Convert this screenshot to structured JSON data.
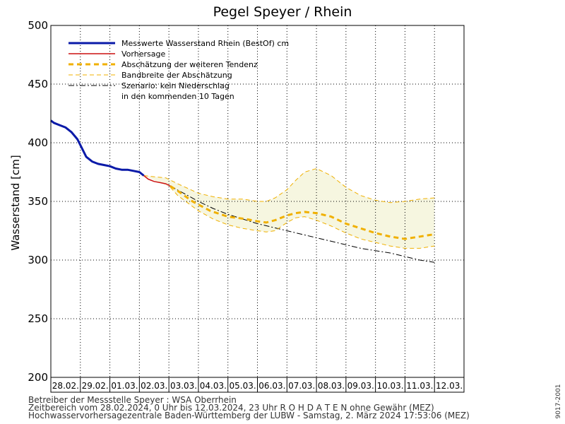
{
  "chart_data": {
    "type": "line",
    "title": "Pegel Speyer / Rhein",
    "ylabel": "Wasserstand [cm]",
    "ylim": [
      200,
      500
    ],
    "yticks": [
      200,
      250,
      300,
      350,
      400,
      450,
      500
    ],
    "grid": true,
    "legend_position": "top-left",
    "categories": [
      "28.02.",
      "29.02.",
      "01.03.",
      "02.03.",
      "03.03.",
      "04.03.",
      "05.03.",
      "06.03.",
      "07.03.",
      "08.03.",
      "09.03.",
      "10.03.",
      "11.03.",
      "12.03."
    ],
    "legend": {
      "entries": [
        "Messwerte Wasserstand Rhein (BestOf)  cm",
        "Vorhersage",
        "Abschätzung der weiteren Tendenz",
        "Bandbreite der Abschätzung",
        "Szenario: kein Niederschlag"
      ],
      "extra_line": "in den kommenden 10 Tagen"
    },
    "series": [
      {
        "name": "Messwerte Wasserstand Rhein (BestOf)  cm",
        "color": "#0a1aa8",
        "x": [
          0,
          0.1,
          0.3,
          0.5,
          0.7,
          0.9,
          1.0,
          1.2,
          1.4,
          1.6,
          1.8,
          2.0,
          2.2,
          2.4,
          2.6,
          2.8,
          3.0,
          3.15
        ],
        "y": [
          419,
          417,
          415,
          413,
          409,
          403,
          398,
          388,
          384,
          382,
          381,
          380,
          378,
          377,
          377,
          376,
          375,
          372
        ]
      },
      {
        "name": "Vorhersage",
        "color": "#cc1111",
        "x": [
          3.15,
          3.3,
          3.5,
          3.7,
          3.9,
          4.05
        ],
        "y": [
          372,
          369,
          367,
          366,
          365,
          363
        ]
      },
      {
        "name": "Abschätzung der weiteren Tendenz",
        "color": "#f0b000",
        "x": [
          4.05,
          4.3,
          4.8,
          5.4,
          6.0,
          6.6,
          7.0,
          7.3,
          7.6,
          8.0,
          8.3,
          8.6,
          9.0,
          9.5,
          10.0,
          10.5,
          11.0,
          11.5,
          12.0,
          12.5,
          13.0
        ],
        "y": [
          363,
          359,
          350,
          342,
          337,
          335,
          333,
          332,
          334,
          338,
          340,
          341,
          340,
          337,
          331,
          327,
          323,
          320,
          318,
          320,
          322
        ]
      },
      {
        "name": "Bandbreite der Abschätzung (oben)",
        "color": "#f0b000",
        "x": [
          3.15,
          3.5,
          3.9,
          4.3,
          5.0,
          5.5,
          6.0,
          6.5,
          7.0,
          7.3,
          7.6,
          8.0,
          8.3,
          8.6,
          9.0,
          9.5,
          10.0,
          10.5,
          11.0,
          11.5,
          12.0,
          12.5,
          13.0
        ],
        "y": [
          372,
          371,
          370,
          365,
          357,
          354,
          352,
          352,
          350,
          350,
          353,
          360,
          368,
          375,
          378,
          372,
          362,
          355,
          351,
          349,
          350,
          352,
          353
        ]
      },
      {
        "name": "Bandbreite der Abschätzung (unten)",
        "color": "#f0b000",
        "x": [
          4.05,
          4.3,
          5.0,
          5.5,
          6.0,
          6.5,
          7.0,
          7.3,
          7.6,
          8.0,
          8.3,
          8.6,
          9.0,
          9.5,
          10.0,
          10.5,
          11.0,
          11.5,
          12.0,
          12.5,
          13.0
        ],
        "y": [
          362,
          355,
          342,
          335,
          330,
          327,
          325,
          324,
          325,
          332,
          336,
          337,
          334,
          329,
          323,
          318,
          315,
          312,
          310,
          310,
          312
        ]
      },
      {
        "name": "Szenario: kein Niederschlag",
        "color": "#000000",
        "x": [
          4.05,
          4.5,
          5.0,
          5.5,
          6.0,
          6.5,
          7.0,
          7.5,
          8.0,
          8.5,
          9.0,
          9.5,
          10.0,
          10.5,
          11.0,
          11.5,
          12.0,
          12.5,
          13.0
        ],
        "y": [
          363,
          357,
          350,
          344,
          339,
          335,
          331,
          328,
          325,
          322,
          319,
          316,
          313,
          310,
          308,
          306,
          303,
          300,
          298
        ]
      }
    ]
  },
  "footer": {
    "line1": "Betreiber der Messstelle Speyer : WSA Oberrhein",
    "line2": "Zeitbereich vom 28.02.2024, 0 Uhr bis 12.03.2024, 23 Uhr    R O H D A T E N ohne Gewähr (MEZ)",
    "line3": "Hochwasservorhersagezentrale Baden-Württemberg der LUBW - Samstag, 2. März 2024 17:53:06 (MEZ)",
    "side_code": "9017-2001"
  }
}
